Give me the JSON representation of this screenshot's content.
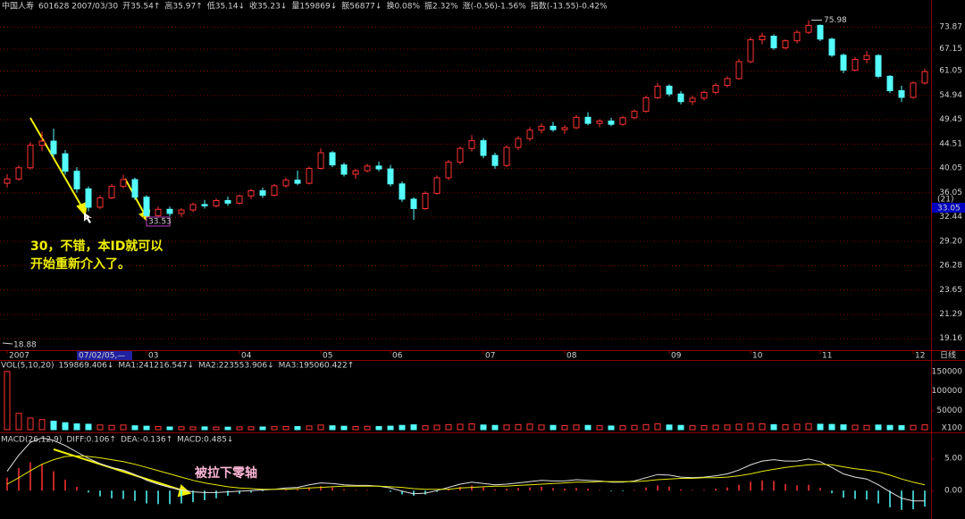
{
  "header": {
    "items": [
      {
        "text": "中国人寿",
        "color": "#e8e800"
      },
      {
        "text": "601628 2007/03/30",
        "color": "#c0c0c0"
      },
      {
        "text": "开35.54↑",
        "color": "#e0e0e0"
      },
      {
        "text": "高35.97↑",
        "color": "#ff5050"
      },
      {
        "text": "低35.14↓",
        "color": "#e0e0e0"
      },
      {
        "text": "收35.23↓",
        "color": "#e0e0e0"
      },
      {
        "text": "量159869↓",
        "color": "#e0e0e0"
      },
      {
        "text": "额56877↓",
        "color": "#e0e0e0"
      },
      {
        "text": "换0.08%",
        "color": "#e0e0e0"
      },
      {
        "text": "振2.32%",
        "color": "#e0e0e0"
      },
      {
        "text": "涨(-0.56)-1.56%",
        "color": "#54fcfc"
      },
      {
        "text": "指数(-13.55)-0.42%",
        "color": "#54fcfc"
      }
    ]
  },
  "chart_data": [
    {
      "type": "candlestick",
      "log": true,
      "grid": true,
      "up_color": "#ff3232",
      "down_color": "#54fcfc",
      "ylim": [
        18.2,
        80.4
      ],
      "yticks": [
        73.87,
        67.15,
        61.05,
        54.94,
        49.45,
        44.51,
        40.05,
        36.05,
        32.44,
        {
          "value": 29.2,
          "label": "29.20"
        },
        26.28,
        23.65,
        21.29,
        19.16
      ],
      "xticks": [
        {
          "value": 0,
          "label": "2007"
        },
        {
          "value": 12,
          "label": "03"
        },
        {
          "value": 20,
          "label": "04"
        },
        {
          "value": 27,
          "label": "05"
        },
        {
          "value": 33,
          "label": "06"
        },
        {
          "value": 41,
          "label": "07"
        },
        {
          "value": 48,
          "label": "08"
        },
        {
          "value": 57,
          "label": "09"
        },
        {
          "value": 64,
          "label": "10"
        },
        {
          "value": 70,
          "label": "11"
        },
        {
          "value": 78,
          "label": "12"
        }
      ],
      "x_unit_label": "日线",
      "high_mark": 75.98,
      "low_mark": 18.88,
      "cursor": {
        "date": "07/02/05,—",
        "price_box": "33.53",
        "axis_count": "(21)",
        "axis_price": "33.05"
      },
      "annotations": [
        "30，不错，本ID就可以",
        "开始重新介入了。"
      ],
      "ohlc": [
        [
          37.5,
          39.0,
          36.8,
          38.2
        ],
        [
          38.2,
          40.5,
          37.9,
          40.1
        ],
        [
          40.1,
          44.8,
          39.8,
          44.2
        ],
        [
          44.2,
          46.9,
          43.1,
          45.0
        ],
        [
          45.0,
          47.5,
          42.0,
          42.6
        ],
        [
          42.6,
          43.3,
          38.9,
          39.5
        ],
        [
          39.5,
          40.2,
          36.0,
          36.6
        ],
        [
          36.6,
          37.0,
          33.2,
          33.8
        ],
        [
          33.8,
          35.6,
          33.5,
          35.2
        ],
        [
          35.2,
          37.4,
          35.0,
          37.0
        ],
        [
          37.0,
          38.9,
          36.7,
          38.1
        ],
        [
          38.1,
          38.4,
          34.9,
          35.3
        ],
        [
          35.3,
          35.6,
          32.1,
          32.6
        ],
        [
          32.6,
          33.9,
          32.2,
          33.5
        ],
        [
          33.5,
          33.9,
          32.5,
          32.9
        ],
        [
          32.9,
          33.7,
          32.4,
          33.4
        ],
        [
          33.4,
          34.5,
          33.1,
          34.2
        ],
        [
          34.2,
          34.9,
          33.6,
          34.0
        ],
        [
          34.0,
          35.1,
          33.8,
          34.8
        ],
        [
          34.8,
          35.4,
          34.0,
          34.4
        ],
        [
          34.4,
          35.7,
          34.2,
          35.5
        ],
        [
          35.5,
          36.6,
          35.0,
          36.3
        ],
        [
          36.3,
          36.8,
          35.2,
          35.6
        ],
        [
          35.6,
          37.4,
          35.4,
          37.1
        ],
        [
          37.1,
          38.4,
          36.8,
          38.0
        ],
        [
          38.0,
          39.6,
          37.2,
          37.5
        ],
        [
          37.5,
          40.3,
          37.3,
          40.0
        ],
        [
          40.0,
          43.6,
          39.8,
          42.8
        ],
        [
          42.8,
          43.1,
          40.2,
          40.6
        ],
        [
          40.6,
          41.0,
          38.6,
          39.0
        ],
        [
          39.0,
          39.9,
          38.2,
          39.6
        ],
        [
          39.6,
          40.8,
          39.3,
          40.4
        ],
        [
          40.4,
          41.2,
          39.5,
          39.9
        ],
        [
          39.9,
          40.6,
          37.0,
          37.4
        ],
        [
          37.4,
          37.8,
          34.6,
          35.0
        ],
        [
          35.0,
          35.3,
          32.0,
          33.6
        ],
        [
          33.6,
          36.2,
          33.4,
          35.9
        ],
        [
          35.9,
          38.8,
          35.7,
          38.4
        ],
        [
          38.4,
          41.5,
          38.0,
          41.1
        ],
        [
          41.1,
          44.0,
          40.7,
          43.6
        ],
        [
          43.6,
          46.2,
          43.0,
          45.1
        ],
        [
          45.1,
          45.6,
          41.8,
          42.3
        ],
        [
          42.3,
          42.8,
          39.9,
          40.5
        ],
        [
          40.5,
          44.2,
          40.2,
          43.8
        ],
        [
          43.8,
          46.0,
          43.3,
          45.5
        ],
        [
          45.5,
          47.8,
          45.0,
          47.2
        ],
        [
          47.2,
          48.6,
          46.5,
          48.0
        ],
        [
          48.0,
          48.9,
          46.9,
          47.3
        ],
        [
          47.3,
          48.2,
          46.4,
          47.7
        ],
        [
          47.7,
          50.4,
          47.4,
          49.9
        ],
        [
          49.9,
          51.0,
          48.2,
          48.6
        ],
        [
          48.6,
          49.5,
          47.8,
          49.1
        ],
        [
          49.1,
          49.8,
          48.0,
          48.4
        ],
        [
          48.4,
          50.2,
          48.1,
          49.8
        ],
        [
          49.8,
          51.6,
          49.5,
          51.2
        ],
        [
          51.2,
          54.8,
          50.9,
          54.3
        ],
        [
          54.3,
          57.9,
          54.0,
          57.1
        ],
        [
          57.1,
          57.6,
          54.6,
          55.2
        ],
        [
          55.2,
          55.9,
          52.8,
          53.4
        ],
        [
          53.4,
          54.8,
          52.6,
          54.2
        ],
        [
          54.2,
          56.0,
          53.7,
          55.6
        ],
        [
          55.6,
          57.8,
          55.1,
          57.3
        ],
        [
          57.3,
          59.6,
          56.8,
          59.0
        ],
        [
          59.0,
          64.2,
          58.7,
          63.5
        ],
        [
          63.5,
          70.6,
          63.1,
          69.8
        ],
        [
          69.8,
          72.0,
          68.4,
          70.9
        ],
        [
          70.9,
          71.5,
          66.8,
          67.4
        ],
        [
          67.4,
          69.9,
          66.9,
          69.5
        ],
        [
          69.5,
          72.8,
          68.7,
          72.1
        ],
        [
          72.1,
          75.98,
          71.6,
          74.3
        ],
        [
          74.3,
          74.6,
          69.4,
          70.0
        ],
        [
          70.0,
          70.4,
          64.8,
          65.3
        ],
        [
          65.3,
          65.8,
          60.4,
          61.2
        ],
        [
          61.2,
          64.8,
          60.9,
          64.1
        ],
        [
          64.1,
          66.5,
          63.0,
          65.2
        ],
        [
          65.2,
          65.6,
          59.1,
          59.6
        ],
        [
          59.6,
          59.9,
          55.4,
          56.0
        ],
        [
          56.0,
          57.2,
          53.3,
          54.4
        ],
        [
          54.4,
          58.3,
          54.1,
          57.9
        ],
        [
          57.9,
          61.6,
          57.5,
          60.8
        ]
      ]
    },
    {
      "type": "volume",
      "ylim": [
        0,
        175000
      ],
      "yticks": [
        50000,
        100000,
        150000
      ],
      "unit_label": "X100",
      "legend": [
        {
          "text": "VOL(5,10,20)",
          "color": "#c0c0c0"
        },
        {
          "text": "159869.406↓",
          "color": "#e0e0e0"
        },
        {
          "text": "MA1:241216.547↓",
          "color": "#e0e0e0"
        },
        {
          "text": "MA2:223553.906↓",
          "color": "#ff40ff"
        },
        {
          "text": "MA3:195060.422↑",
          "color": "#40ff40"
        }
      ],
      "values": [
        150000,
        42000,
        30000,
        26000,
        22000,
        18000,
        15000,
        14000,
        12000,
        11000,
        12000,
        10000,
        9000,
        8000,
        7000,
        7500,
        7000,
        7200,
        6800,
        6500,
        7000,
        7400,
        6900,
        7800,
        8200,
        8000,
        9500,
        12000,
        10000,
        8800,
        8000,
        8500,
        8200,
        9000,
        11000,
        12500,
        10000,
        11500,
        13000,
        14000,
        15000,
        12000,
        11000,
        12000,
        13000,
        14500,
        12000,
        11000,
        10500,
        12000,
        11000,
        10000,
        9500,
        10000,
        11000,
        13000,
        15000,
        12000,
        11000,
        10000,
        10500,
        11500,
        12000,
        14000,
        16000,
        15000,
        13000,
        12500,
        14000,
        15500,
        14000,
        13500,
        12500,
        11500,
        11000,
        12000,
        11000,
        10500,
        11000,
        12500
      ]
    },
    {
      "type": "macd",
      "ylim": [
        -4,
        8.5
      ],
      "yticks": [
        {
          "value": 5,
          "label": "5.00"
        },
        {
          "value": 0,
          "label": "0.00"
        }
      ],
      "legend": [
        {
          "text": "MACD(26,12,9)",
          "color": "#c0c0c0"
        },
        {
          "text": "DIFF:0.106↑",
          "color": "#e0e0e0"
        },
        {
          "text": "DEA:-0.136↑",
          "color": "#e8e800"
        },
        {
          "text": "MACD:0.485↓",
          "color": "#ff40ff"
        }
      ],
      "annotations": [
        "被拉下零轴"
      ],
      "series": [
        {
          "name": "DIFF",
          "color": "#e0e0e0",
          "values": [
            3.0,
            5.5,
            7.5,
            8.2,
            7.8,
            7.0,
            6.0,
            5.0,
            4.2,
            3.6,
            3.2,
            2.5,
            1.6,
            1.0,
            0.5,
            0.1,
            -0.2,
            -0.3,
            -0.3,
            -0.2,
            -0.1,
            0.0,
            0.1,
            0.2,
            0.4,
            0.5,
            0.9,
            1.2,
            1.1,
            0.9,
            0.8,
            0.8,
            0.7,
            0.4,
            -0.1,
            -0.5,
            -0.4,
            0.0,
            0.5,
            1.0,
            1.3,
            1.1,
            0.9,
            1.0,
            1.2,
            1.4,
            1.6,
            1.5,
            1.5,
            1.7,
            1.6,
            1.5,
            1.3,
            1.3,
            1.5,
            2.0,
            2.5,
            2.4,
            2.1,
            2.0,
            2.1,
            2.3,
            2.6,
            3.2,
            4.0,
            4.6,
            4.8,
            4.6,
            4.6,
            4.9,
            4.5,
            3.6,
            2.6,
            2.1,
            1.8,
            0.9,
            -0.2,
            -1.2,
            -1.6,
            -1.6
          ]
        },
        {
          "name": "DEA",
          "color": "#e8e800",
          "values": [
            1.0,
            2.0,
            3.1,
            4.1,
            4.8,
            5.3,
            5.4,
            5.3,
            5.1,
            4.8,
            4.5,
            4.1,
            3.6,
            3.1,
            2.6,
            2.1,
            1.6,
            1.2,
            0.9,
            0.6,
            0.4,
            0.3,
            0.2,
            0.2,
            0.2,
            0.3,
            0.4,
            0.5,
            0.6,
            0.7,
            0.7,
            0.7,
            0.7,
            0.6,
            0.5,
            0.3,
            0.2,
            0.2,
            0.2,
            0.4,
            0.5,
            0.6,
            0.7,
            0.7,
            0.8,
            0.9,
            1.0,
            1.1,
            1.2,
            1.3,
            1.3,
            1.4,
            1.4,
            1.4,
            1.4,
            1.5,
            1.7,
            1.8,
            1.9,
            1.9,
            2.0,
            2.0,
            2.1,
            2.3,
            2.6,
            3.0,
            3.3,
            3.6,
            3.8,
            4.0,
            4.1,
            4.0,
            3.7,
            3.4,
            3.2,
            2.9,
            2.4,
            1.8,
            1.3,
            0.9
          ]
        }
      ],
      "hist": [
        2.0,
        3.5,
        4.4,
        4.1,
        3.0,
        1.7,
        0.6,
        -0.3,
        -0.9,
        -1.2,
        -1.3,
        -1.6,
        -2.0,
        -2.1,
        -2.1,
        -2.0,
        -1.8,
        -1.5,
        -1.2,
        -0.8,
        -0.5,
        -0.3,
        -0.1,
        0.0,
        0.2,
        0.2,
        0.5,
        0.7,
        0.5,
        0.2,
        0.1,
        0.1,
        0.0,
        -0.2,
        -0.6,
        -0.8,
        -0.6,
        -0.2,
        0.3,
        0.6,
        0.8,
        0.5,
        0.2,
        0.3,
        0.4,
        0.5,
        0.6,
        0.4,
        0.3,
        0.4,
        0.3,
        0.1,
        -0.1,
        -0.1,
        0.1,
        0.5,
        0.8,
        0.6,
        0.2,
        0.1,
        0.1,
        0.3,
        0.5,
        0.9,
        1.4,
        1.6,
        1.5,
        1.0,
        0.8,
        0.9,
        0.4,
        -0.4,
        -1.1,
        -1.3,
        -1.4,
        -2.0,
        -2.6,
        -3.0,
        -2.9,
        -2.5
      ],
      "up_color": "#ff3232",
      "down_color": "#54fcfc"
    }
  ]
}
